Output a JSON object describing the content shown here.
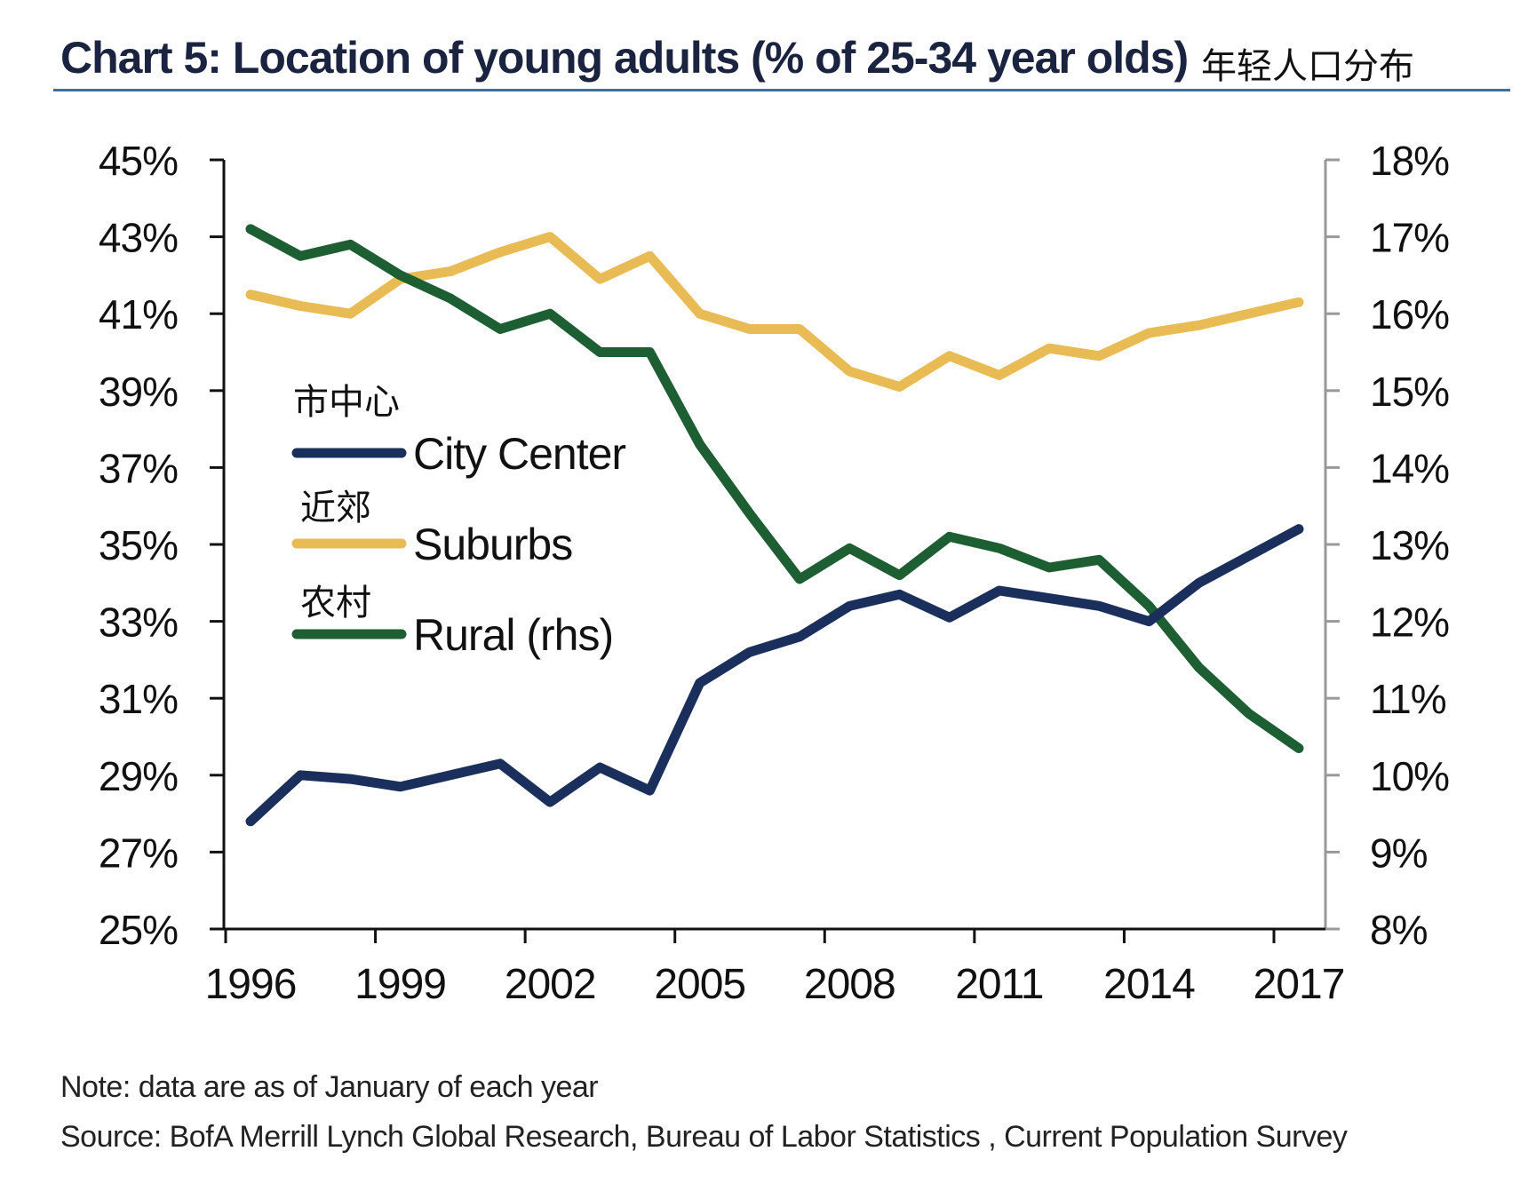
{
  "header": {
    "title": "Chart 5: Location of young adults (% of 25-34 year olds)",
    "title_cn": "年轻人口分布"
  },
  "chart_data": {
    "type": "line",
    "title": "Chart 5: Location of young adults (% of 25-34 year olds)",
    "x": [
      1996,
      1997,
      1998,
      1999,
      2000,
      2001,
      2002,
      2003,
      2004,
      2005,
      2006,
      2007,
      2008,
      2009,
      2010,
      2011,
      2012,
      2013,
      2014,
      2015,
      2016,
      2017
    ],
    "x_tick_labels": [
      "1996",
      "1999",
      "2002",
      "2005",
      "2008",
      "2011",
      "2014",
      "2017"
    ],
    "x_tick_values": [
      1996,
      1999,
      2002,
      2005,
      2008,
      2011,
      2014,
      2017
    ],
    "y_left": {
      "lim": [
        25,
        45
      ],
      "ticks": [
        45,
        43,
        41,
        39,
        37,
        35,
        33,
        31,
        29,
        27,
        25
      ],
      "tick_labels": [
        "45%",
        "43%",
        "41%",
        "39%",
        "37%",
        "35%",
        "33%",
        "31%",
        "29%",
        "27%",
        "25%"
      ]
    },
    "y_right": {
      "lim": [
        8,
        18
      ],
      "ticks": [
        18,
        17,
        16,
        15,
        14,
        13,
        12,
        11,
        10,
        9,
        8
      ],
      "tick_labels": [
        "18%",
        "17%",
        "16%",
        "15%",
        "14%",
        "13%",
        "12%",
        "11%",
        "10%",
        "9%",
        "8%"
      ]
    },
    "grid": false,
    "legend_position": "center-left",
    "series": [
      {
        "name": "City Center",
        "name_cn": "市中心",
        "axis": "left",
        "color": "#1b2f5c",
        "values": [
          27.8,
          29.0,
          28.9,
          28.7,
          29.0,
          29.3,
          28.3,
          29.2,
          28.6,
          31.4,
          32.2,
          32.6,
          33.4,
          33.7,
          33.1,
          33.8,
          33.6,
          33.4,
          33.0,
          34.0,
          34.7,
          35.4
        ]
      },
      {
        "name": "Suburbs",
        "name_cn": "近郊",
        "axis": "left",
        "color": "#e8bb55",
        "values": [
          41.5,
          41.2,
          41.0,
          41.9,
          42.1,
          42.6,
          43.0,
          41.9,
          42.5,
          41.0,
          40.6,
          40.6,
          39.5,
          39.1,
          39.9,
          39.4,
          40.1,
          39.9,
          40.5,
          40.7,
          41.0,
          41.3
        ]
      },
      {
        "name": "Rural (rhs)",
        "name_cn": "农村",
        "axis": "right",
        "color": "#1d5e33",
        "values": [
          17.1,
          16.75,
          16.9,
          16.5,
          16.2,
          15.8,
          16.0,
          15.5,
          15.5,
          14.3,
          13.4,
          12.55,
          12.95,
          12.6,
          13.1,
          12.95,
          12.7,
          12.8,
          12.2,
          11.4,
          10.8,
          10.35
        ]
      }
    ]
  },
  "footnotes": {
    "note": "Note: data are as of January of each year",
    "source": "Source: BofA Merrill Lynch Global Research, Bureau of Labor Statistics , Current Population Survey"
  }
}
